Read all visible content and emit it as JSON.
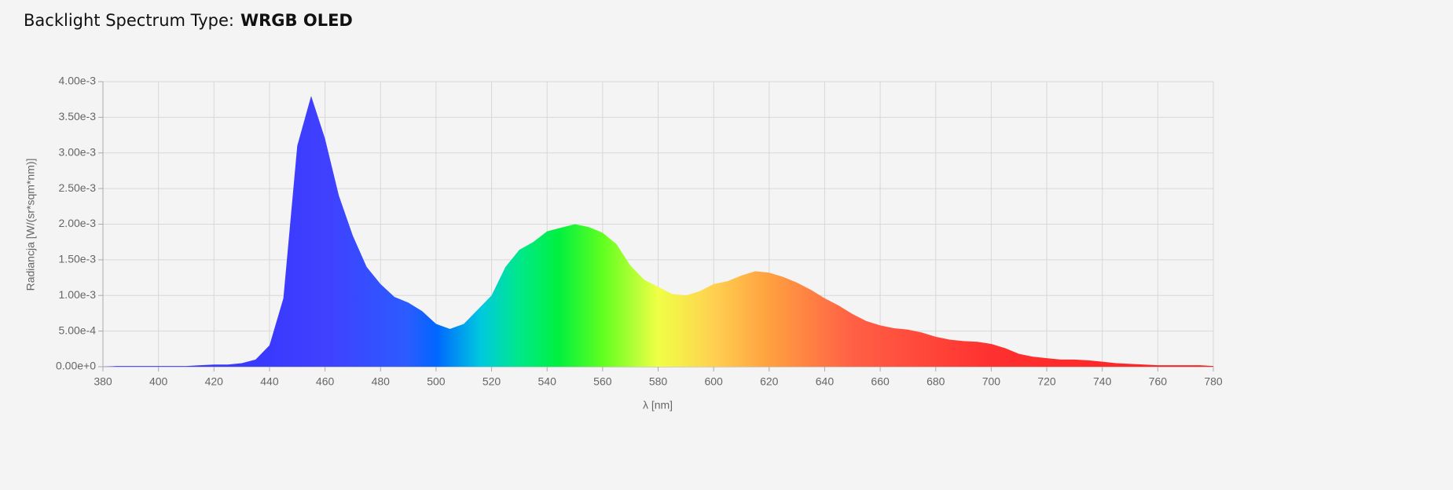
{
  "chart_data": {
    "type": "area",
    "title": "Backlight Spectrum Type:",
    "subtitle": "WRGB OLED",
    "y_label": "Radiancja [W/(sr*sqm*nm)]",
    "x_label": "λ [nm]",
    "x": [
      380,
      385,
      390,
      395,
      400,
      405,
      410,
      415,
      420,
      425,
      430,
      435,
      440,
      445,
      450,
      455,
      460,
      465,
      470,
      475,
      480,
      485,
      490,
      495,
      500,
      505,
      510,
      515,
      520,
      525,
      530,
      535,
      540,
      545,
      550,
      555,
      560,
      565,
      570,
      575,
      580,
      585,
      590,
      595,
      600,
      605,
      610,
      615,
      620,
      625,
      630,
      635,
      640,
      645,
      650,
      655,
      660,
      665,
      670,
      675,
      680,
      685,
      690,
      695,
      700,
      705,
      710,
      715,
      720,
      725,
      730,
      735,
      740,
      745,
      750,
      755,
      760,
      765,
      770,
      775,
      780
    ],
    "values": [
      0,
      1e-05,
      1e-05,
      1e-05,
      1e-05,
      1e-05,
      1e-05,
      2e-05,
      3e-05,
      3e-05,
      5e-05,
      0.0001,
      0.0003,
      0.00096,
      0.0031,
      0.0038,
      0.0032,
      0.0024,
      0.00184,
      0.0014,
      0.00116,
      0.00098,
      0.0009,
      0.00078,
      0.0006,
      0.00053,
      0.0006,
      0.0008,
      0.001,
      0.0014,
      0.00164,
      0.00175,
      0.0019,
      0.00195,
      0.002,
      0.00196,
      0.00188,
      0.00172,
      0.00142,
      0.00122,
      0.00112,
      0.00102,
      0.001,
      0.00106,
      0.00116,
      0.0012,
      0.00128,
      0.00134,
      0.00132,
      0.00126,
      0.00118,
      0.00108,
      0.00096,
      0.00086,
      0.00074,
      0.00064,
      0.00058,
      0.00054,
      0.00052,
      0.00048,
      0.00042,
      0.00038,
      0.00036,
      0.00035,
      0.00032,
      0.00026,
      0.00018,
      0.00014,
      0.00012,
      0.0001,
      0.0001,
      9e-05,
      7e-05,
      5e-05,
      4e-05,
      3e-05,
      2e-05,
      2e-05,
      2e-05,
      2e-05,
      1e-05
    ],
    "xlim": [
      380,
      780
    ],
    "xticks": [
      380,
      400,
      420,
      440,
      460,
      480,
      500,
      520,
      540,
      560,
      580,
      600,
      620,
      640,
      660,
      680,
      700,
      720,
      740,
      760,
      780
    ],
    "ylim": [
      0,
      0.004
    ],
    "yticks": [
      {
        "value": 0,
        "label": "0.00e+0"
      },
      {
        "value": 0.0005,
        "label": "5.00e-4"
      },
      {
        "value": 0.001,
        "label": "1.00e-3"
      },
      {
        "value": 0.0015,
        "label": "1.50e-3"
      },
      {
        "value": 0.002,
        "label": "2.00e-3"
      },
      {
        "value": 0.0025,
        "label": "2.50e-3"
      },
      {
        "value": 0.003,
        "label": "3.00e-3"
      },
      {
        "value": 0.0035,
        "label": "3.50e-3"
      },
      {
        "value": 0.004,
        "label": "4.00e-3"
      }
    ],
    "grid": true
  }
}
